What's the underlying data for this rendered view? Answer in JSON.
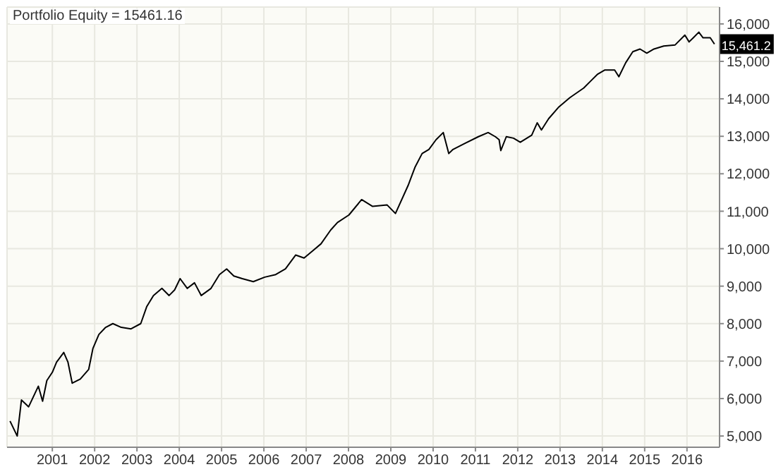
{
  "chart_data": {
    "type": "line",
    "title": "Portfolio Equity = 15461.16",
    "x": [
      2000.0,
      2000.17,
      2000.27,
      2000.44,
      2000.67,
      2000.77,
      2000.87,
      2001.0,
      2001.1,
      2001.27,
      2001.37,
      2001.47,
      2001.66,
      2001.86,
      2001.96,
      2002.1,
      2002.26,
      2002.43,
      2002.63,
      2002.86,
      2003.09,
      2003.23,
      2003.39,
      2003.59,
      2003.76,
      2003.89,
      2004.02,
      2004.19,
      2004.36,
      2004.52,
      2004.75,
      2004.95,
      2005.12,
      2005.29,
      2005.49,
      2005.75,
      2006.02,
      2006.28,
      2006.51,
      2006.75,
      2006.95,
      2007.15,
      2007.35,
      2007.58,
      2007.74,
      2008.01,
      2008.31,
      2008.57,
      2008.91,
      2009.11,
      2009.41,
      2009.57,
      2009.74,
      2009.9,
      2010.07,
      2010.24,
      2010.37,
      2010.47,
      2010.73,
      2011.07,
      2011.3,
      2011.47,
      2011.56,
      2011.6,
      2011.73,
      2011.9,
      2012.06,
      2012.33,
      2012.46,
      2012.56,
      2012.73,
      2012.96,
      2013.23,
      2013.56,
      2013.72,
      2013.89,
      2014.06,
      2014.29,
      2014.39,
      2014.55,
      2014.72,
      2014.89,
      2015.05,
      2015.22,
      2015.45,
      2015.72,
      2015.95,
      2016.05,
      2016.15,
      2016.28,
      2016.38,
      2016.55,
      2016.65
    ],
    "series": [
      {
        "color": "#000000",
        "values": [
          5400,
          5000,
          5960,
          5780,
          6330,
          5930,
          6480,
          6700,
          6970,
          7230,
          6970,
          6410,
          6520,
          6780,
          7340,
          7710,
          7900,
          8000,
          7900,
          7860,
          8000,
          8450,
          8750,
          8940,
          8750,
          8900,
          9200,
          8940,
          9090,
          8750,
          8940,
          9310,
          9460,
          9270,
          9200,
          9120,
          9240,
          9310,
          9460,
          9830,
          9750,
          9940,
          10130,
          10500,
          10700,
          10900,
          11310,
          11130,
          11170,
          10940,
          11690,
          12170,
          12540,
          12650,
          12910,
          13100,
          12540,
          12650,
          12800,
          12990,
          13100,
          12990,
          12910,
          12620,
          12990,
          12950,
          12840,
          13030,
          13360,
          13170,
          13470,
          13770,
          14030,
          14290,
          14470,
          14660,
          14770,
          14770,
          14590,
          14960,
          15260,
          15330,
          15220,
          15330,
          15410,
          15440,
          15700,
          15520,
          15630,
          15780,
          15630,
          15630,
          15461
        ]
      }
    ],
    "xlim": [
      1999.93,
      2016.77
    ],
    "xticks": [
      2001,
      2002,
      2003,
      2004,
      2005,
      2006,
      2007,
      2008,
      2009,
      2010,
      2011,
      2012,
      2013,
      2014,
      2015,
      2016
    ],
    "ylim": [
      4700,
      16450
    ],
    "yticks": [
      {
        "value": 5000,
        "label": "5,000"
      },
      {
        "value": 6000,
        "label": "6,000"
      },
      {
        "value": 7000,
        "label": "7,000"
      },
      {
        "value": 8000,
        "label": "8,000"
      },
      {
        "value": 9000,
        "label": "9,000"
      },
      {
        "value": 10000,
        "label": "10,000"
      },
      {
        "value": 11000,
        "label": "11,000"
      },
      {
        "value": 12000,
        "label": "12,000"
      },
      {
        "value": 13000,
        "label": "13,000"
      },
      {
        "value": 14000,
        "label": "14,000"
      },
      {
        "value": 15000,
        "label": "15,000"
      },
      {
        "value": 16000,
        "label": "16,000"
      }
    ],
    "grid": true,
    "marker": "none",
    "line_style": "solid",
    "annotations": [
      {
        "text": "15,461.2",
        "x": 2016.65,
        "y": 15461
      }
    ]
  }
}
